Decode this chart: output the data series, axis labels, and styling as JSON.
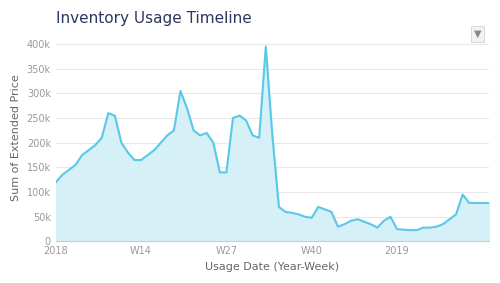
{
  "title": "Inventory Usage Timeline",
  "xlabel": "Usage Date (Year-Week)",
  "ylabel": "Sum of Extended Price",
  "line_color": "#5bc8e8",
  "fill_color": "#d6f0f8",
  "background_color": "#ffffff",
  "plot_bg_color": "#ffffff",
  "grid_color": "#e8e8e8",
  "title_color": "#2d3561",
  "axis_label_color": "#666666",
  "tick_color": "#999999",
  "ylim": [
    0,
    420000
  ],
  "yticks": [
    0,
    50000,
    100000,
    150000,
    200000,
    250000,
    300000,
    350000,
    400000
  ],
  "ytick_labels": [
    "0",
    "50k",
    "100k",
    "150k",
    "200k",
    "250k",
    "300k",
    "350k",
    "400k"
  ],
  "xtick_positions": [
    0,
    13,
    26,
    39,
    52,
    65
  ],
  "xtick_labels": [
    "2018",
    "W14",
    "W27",
    "W40",
    "2019",
    ""
  ],
  "x_values": [
    0,
    1,
    2,
    3,
    4,
    5,
    6,
    7,
    8,
    9,
    10,
    11,
    12,
    13,
    14,
    15,
    16,
    17,
    18,
    19,
    20,
    21,
    22,
    23,
    24,
    25,
    26,
    27,
    28,
    29,
    30,
    31,
    32,
    33,
    34,
    35,
    36,
    37,
    38,
    39,
    40,
    41,
    42,
    43,
    44,
    45,
    46,
    47,
    48,
    49,
    50,
    51,
    52,
    53,
    54,
    55,
    56,
    57,
    58,
    59,
    60,
    61,
    62,
    63,
    64,
    65,
    66
  ],
  "y_values": [
    120000,
    135000,
    145000,
    155000,
    175000,
    185000,
    195000,
    210000,
    260000,
    255000,
    200000,
    180000,
    165000,
    165000,
    175000,
    185000,
    200000,
    215000,
    225000,
    305000,
    270000,
    225000,
    215000,
    220000,
    200000,
    140000,
    140000,
    250000,
    255000,
    245000,
    215000,
    210000,
    395000,
    215000,
    70000,
    60000,
    58000,
    55000,
    50000,
    48000,
    70000,
    65000,
    60000,
    30000,
    35000,
    42000,
    45000,
    40000,
    35000,
    28000,
    42000,
    50000,
    25000,
    24000,
    23000,
    23000,
    28000,
    28000,
    30000,
    35000,
    45000,
    55000,
    95000,
    78000,
    78000,
    78000,
    78000
  ]
}
